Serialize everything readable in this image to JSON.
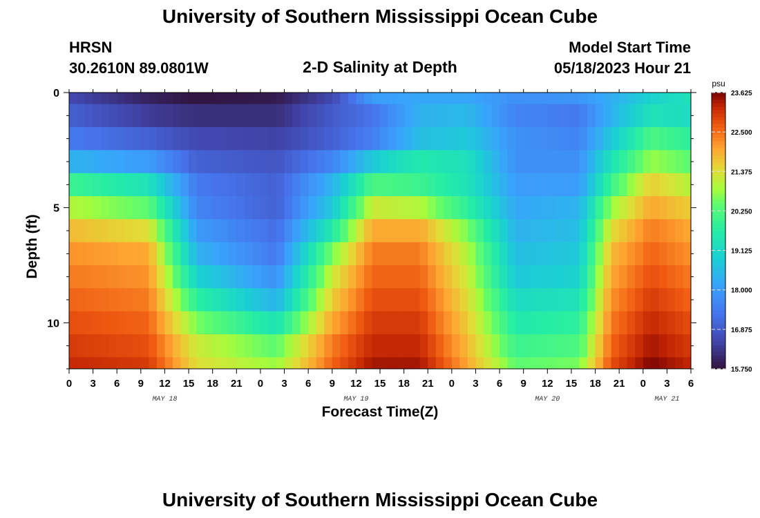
{
  "page": {
    "title": "University of Southern Mississippi Ocean Cube",
    "station": "HRSN",
    "coords": "30.2610N  89.0801W",
    "plot_title": "2-D Salinity at Depth",
    "model_start_label": "Model Start Time",
    "model_start_value": "05/18/2023 Hour 21",
    "footer_title": "University of Southern Mississippi Ocean Cube"
  },
  "chart_data": {
    "type": "heatmap",
    "title": "2-D Salinity at Depth",
    "xlabel": "Forecast Time(Z)",
    "ylabel": "Depth (ft)",
    "x_tick_labels": [
      "0",
      "3",
      "6",
      "9",
      "12",
      "15",
      "18",
      "21",
      "0",
      "3",
      "6",
      "9",
      "12",
      "15",
      "18",
      "21",
      "0",
      "3",
      "6",
      "9",
      "12",
      "15",
      "18",
      "21",
      "0",
      "3",
      "6"
    ],
    "date_labels": [
      {
        "label": "MAY 18",
        "hour": 12
      },
      {
        "label": "MAY 19",
        "hour": 36
      },
      {
        "label": "MAY 20",
        "hour": 60
      },
      {
        "label": "MAY 21",
        "hour": 75
      }
    ],
    "x_range_hours": [
      0,
      78
    ],
    "y_ticks": [
      "0",
      "5",
      "10"
    ],
    "y_range_ft": [
      0,
      12
    ],
    "depth_levels_ft": [
      0,
      1,
      2,
      3,
      4,
      5,
      6,
      7,
      8,
      9,
      10,
      11
    ],
    "colorbar": {
      "unit": "psu",
      "min": 15.75,
      "max": 23.625,
      "ticks": [
        "23.625",
        "22.500",
        "21.375",
        "20.250",
        "19.125",
        "18.000",
        "16.875",
        "15.750"
      ]
    },
    "series_by_depth": [
      {
        "depth_ft": 0,
        "hours": [
          0,
          10,
          16,
          26,
          33,
          38,
          44,
          50,
          56,
          64,
          68,
          73,
          78
        ],
        "salinity": [
          16.6,
          16.0,
          15.8,
          15.9,
          16.6,
          18.0,
          18.2,
          18.2,
          17.8,
          17.9,
          18.3,
          19.0,
          19.4
        ]
      },
      {
        "depth_ft": 1,
        "hours": [
          0,
          10,
          16,
          26,
          33,
          38,
          44,
          50,
          56,
          64,
          68,
          73,
          78
        ],
        "salinity": [
          17.0,
          16.4,
          16.2,
          16.2,
          16.9,
          17.3,
          18.4,
          18.5,
          17.6,
          17.4,
          18.4,
          19.4,
          19.2
        ]
      },
      {
        "depth_ft": 2,
        "hours": [
          0,
          10,
          16,
          26,
          33,
          38,
          44,
          50,
          56,
          64,
          68,
          73,
          78
        ],
        "salinity": [
          17.4,
          17.0,
          16.6,
          16.5,
          17.0,
          17.5,
          18.6,
          18.8,
          17.8,
          17.6,
          18.8,
          20.2,
          19.8
        ]
      },
      {
        "depth_ft": 3,
        "hours": [
          0,
          10,
          16,
          26,
          33,
          38,
          44,
          50,
          56,
          64,
          68,
          73,
          78
        ],
        "salinity": [
          18.4,
          18.0,
          17.0,
          16.8,
          17.6,
          18.8,
          19.6,
          19.3,
          17.8,
          17.8,
          19.4,
          20.8,
          20.4
        ]
      },
      {
        "depth_ft": 4,
        "hours": [
          0,
          10,
          16,
          26,
          33,
          38,
          44,
          50,
          56,
          64,
          68,
          73,
          78
        ],
        "salinity": [
          20.0,
          19.4,
          17.4,
          17.0,
          18.4,
          20.2,
          20.0,
          19.4,
          18.0,
          18.0,
          20.0,
          21.6,
          21.0
        ]
      },
      {
        "depth_ft": 5,
        "hours": [
          0,
          10,
          16,
          26,
          33,
          38,
          44,
          50,
          56,
          64,
          68,
          73,
          78
        ],
        "salinity": [
          21.0,
          20.4,
          17.6,
          17.0,
          18.8,
          21.2,
          21.0,
          19.8,
          18.2,
          18.4,
          20.8,
          22.0,
          21.6
        ]
      },
      {
        "depth_ft": 6,
        "hours": [
          0,
          10,
          16,
          26,
          33,
          38,
          44,
          50,
          56,
          64,
          68,
          73,
          78
        ],
        "salinity": [
          21.8,
          21.4,
          18.0,
          17.2,
          19.6,
          22.0,
          22.0,
          20.6,
          18.4,
          18.6,
          21.4,
          22.4,
          22.0
        ]
      },
      {
        "depth_ft": 7,
        "hours": [
          0,
          10,
          16,
          26,
          33,
          38,
          44,
          50,
          56,
          64,
          68,
          73,
          78
        ],
        "salinity": [
          22.2,
          22.0,
          18.4,
          17.4,
          20.6,
          22.4,
          22.4,
          21.0,
          18.6,
          18.8,
          21.8,
          22.6,
          22.2
        ]
      },
      {
        "depth_ft": 8,
        "hours": [
          0,
          10,
          16,
          26,
          33,
          38,
          44,
          50,
          56,
          64,
          68,
          73,
          78
        ],
        "salinity": [
          22.4,
          22.2,
          19.0,
          17.8,
          21.2,
          22.6,
          22.6,
          21.2,
          18.8,
          19.0,
          22.0,
          22.8,
          22.4
        ]
      },
      {
        "depth_ft": 9,
        "hours": [
          0,
          10,
          16,
          26,
          33,
          38,
          44,
          50,
          56,
          64,
          68,
          73,
          78
        ],
        "salinity": [
          22.6,
          22.4,
          19.8,
          18.4,
          21.6,
          22.8,
          22.8,
          21.4,
          19.2,
          19.4,
          22.2,
          23.0,
          22.6
        ]
      },
      {
        "depth_ft": 10,
        "hours": [
          0,
          10,
          16,
          26,
          33,
          38,
          44,
          50,
          56,
          64,
          68,
          73,
          78
        ],
        "salinity": [
          22.8,
          22.6,
          20.6,
          19.4,
          22.0,
          23.0,
          23.0,
          21.6,
          19.6,
          19.8,
          22.4,
          23.2,
          22.8
        ]
      },
      {
        "depth_ft": 11,
        "hours": [
          0,
          10,
          16,
          26,
          33,
          38,
          44,
          50,
          56,
          64,
          68,
          73,
          78
        ],
        "salinity": [
          23.0,
          22.8,
          21.2,
          20.4,
          22.4,
          23.2,
          23.2,
          21.8,
          20.0,
          20.2,
          22.6,
          23.4,
          23.0
        ]
      },
      {
        "depth_ft": 11.9,
        "hours": [
          0,
          10,
          16,
          26,
          33,
          38,
          44,
          50,
          56,
          64,
          68,
          73,
          78
        ],
        "salinity": [
          23.2,
          23.0,
          21.4,
          20.8,
          22.6,
          23.4,
          23.4,
          22.0,
          20.4,
          20.6,
          22.8,
          23.6,
          23.2
        ]
      }
    ]
  }
}
